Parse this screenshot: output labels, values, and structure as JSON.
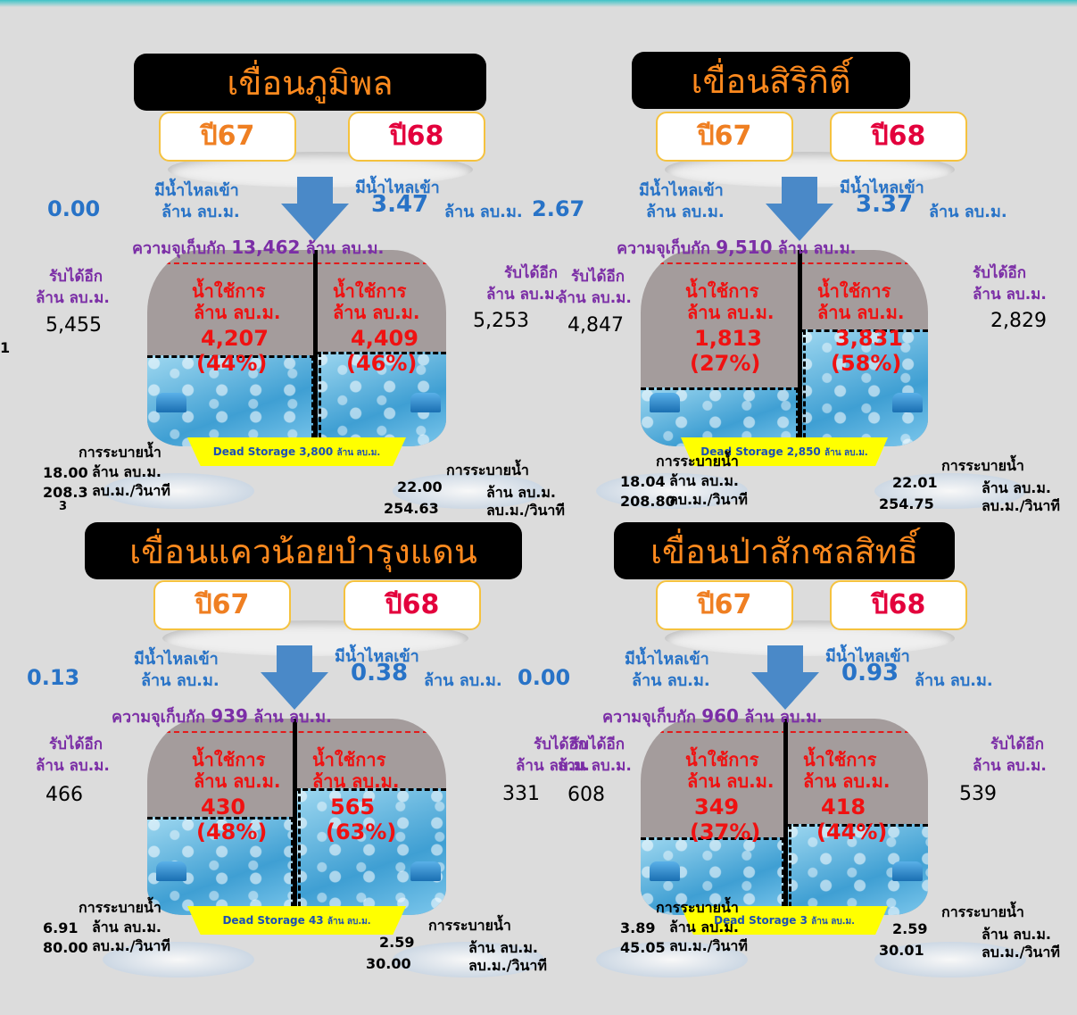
{
  "unit": "ล้าน ลบ.ม.",
  "unit_rate": "ลบ.ม./วินาที",
  "labels": {
    "inflow": "มีน้ำไหลเข้า",
    "capacity": "ความจุเก็บกัก",
    "can_receive": "รับได้อีก",
    "usable": "น้ำใช้การ",
    "release": "การระบายน้ำ",
    "dead_storage": "Dead Storage",
    "year67": "ปี67",
    "year68": "ปี68"
  },
  "dams": [
    {
      "name": "เขื่อนภูมิพล",
      "inflow67": "0.00",
      "inflow68": "3.47",
      "capacity": "13,462",
      "receive67": "5,455",
      "receive68": "5,253",
      "usable67": "4,207",
      "usable67_pct": "(44%)",
      "usable68": "4,409",
      "usable68_pct": "(46%)",
      "fill67_pct": 44,
      "fill68_pct": 46,
      "dead_storage": "3,800",
      "release67_volume": "18.00",
      "release67_rate": "208.3",
      "release67_rate_tail": "3",
      "release68_volume": "22.00",
      "release68_rate": "254.63"
    },
    {
      "name": "เขื่อนสิริกิติ์",
      "inflow67": "2.67",
      "inflow68": "3.37",
      "capacity": "9,510",
      "receive67": "4,847",
      "receive68": "2,829",
      "usable67": "1,813",
      "usable67_pct": "(27%)",
      "usable68": "3,831",
      "usable68_pct": "(58%)",
      "fill67_pct": 27,
      "fill68_pct": 58,
      "dead_storage": "2,850",
      "release67_volume": "18.04",
      "release67_rate": "208.80",
      "release68_volume": "22.01",
      "release68_rate": "254.75"
    },
    {
      "name": "เขื่อนแควน้อยบำรุงแดน",
      "inflow67": "0.13",
      "inflow68": "0.38",
      "capacity": "939",
      "receive67": "466",
      "receive68": "331",
      "usable67": "430",
      "usable67_pct": "(48%)",
      "usable68": "565",
      "usable68_pct": "(63%)",
      "fill67_pct": 48,
      "fill68_pct": 63,
      "dead_storage": "43",
      "release67_volume": "6.91",
      "release67_rate": "80.00",
      "release68_volume": "2.59",
      "release68_rate": "30.00"
    },
    {
      "name": "เขื่อนป่าสักชลสิทธิ์",
      "inflow67": "0.00",
      "inflow68": "0.93",
      "capacity": "960",
      "receive67": "608",
      "receive68": "539",
      "usable67": "349",
      "usable67_pct": "(37%)",
      "usable68": "418",
      "usable68_pct": "(44%)",
      "fill67_pct": 37,
      "fill68_pct": 44,
      "dead_storage": "3",
      "release67_volume": "3.89",
      "release67_rate": "45.05",
      "release68_volume": "2.59",
      "release68_rate": "30.01"
    }
  ]
}
